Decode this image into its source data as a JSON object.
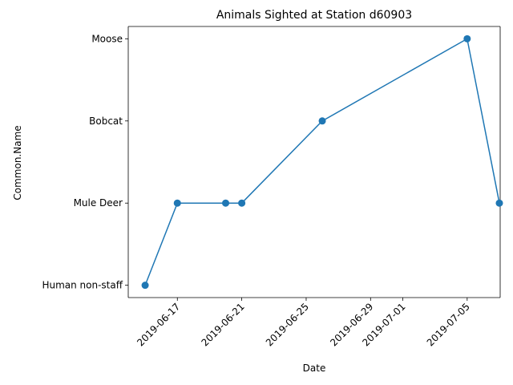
{
  "chart_data": {
    "type": "line",
    "title": "Animals Sighted at Station d60903",
    "xlabel": "Date",
    "ylabel": "Common.Name",
    "categories": [
      "Human non-staff",
      "Mule Deer",
      "Bobcat",
      "Moose"
    ],
    "x_ticks": [
      "2019-06-17",
      "2019-06-21",
      "2019-06-25",
      "2019-06-29",
      "2019-07-01",
      "2019-07-05"
    ],
    "xlim": [
      "2019-06-14",
      "2019-07-07"
    ],
    "grid": false,
    "series": [
      {
        "x": [
          "2019-06-15",
          "2019-06-17",
          "2019-06-20",
          "2019-06-21",
          "2019-06-26",
          "2019-07-05",
          "2019-07-07"
        ],
        "y": [
          "Human non-staff",
          "Mule Deer",
          "Mule Deer",
          "Mule Deer",
          "Bobcat",
          "Moose",
          "Mule Deer"
        ]
      }
    ],
    "colors": {
      "line": "#1f77b4"
    }
  }
}
